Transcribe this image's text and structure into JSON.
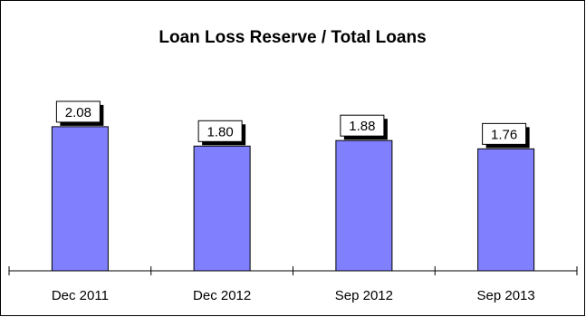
{
  "chart_data": {
    "type": "bar",
    "title": "Loan Loss Reserve / Total Loans",
    "categories": [
      "Dec 2011",
      "Dec 2012",
      "Sep 2012",
      "Sep 2013"
    ],
    "values": [
      2.08,
      1.8,
      1.88,
      1.76
    ],
    "data_labels": [
      "2.08",
      "1.80",
      "1.88",
      "1.76"
    ],
    "xlabel": "",
    "ylabel": "",
    "ylim": [
      0,
      3
    ],
    "grid": false,
    "legend": "none",
    "colors": {
      "bar_fill": "#8080ff",
      "bar_stroke": "#000000",
      "label_bg": "#ffffff",
      "label_shadow": "#000000"
    }
  }
}
